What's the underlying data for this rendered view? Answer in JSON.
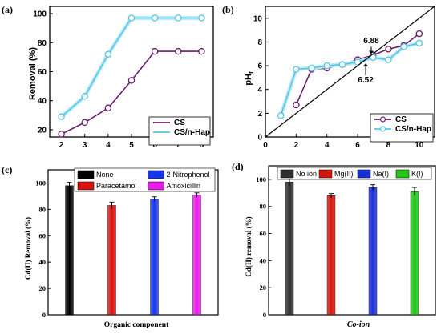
{
  "chart_data": [
    {
      "panel_label": "(a)",
      "type": "line",
      "xlabel": "",
      "ylabel": "Removal (%)",
      "xlim": [
        1.5,
        8.5
      ],
      "ylim": [
        15,
        105
      ],
      "xticks": [
        2,
        3,
        4,
        5,
        6,
        7,
        8
      ],
      "yticks": [
        20,
        40,
        60,
        80,
        100
      ],
      "legend_position": "bottom-right",
      "series": [
        {
          "name": "CS",
          "color": "#6b1f6b",
          "x": [
            2,
            3,
            4,
            5,
            6,
            7,
            8
          ],
          "y": [
            17,
            25,
            35,
            54,
            74,
            74,
            74
          ]
        },
        {
          "name": "CS/n-Hap",
          "color": "#56c6e6",
          "x": [
            2,
            3,
            4,
            5,
            6,
            7,
            8
          ],
          "y": [
            29,
            43,
            72,
            97,
            97,
            97,
            97
          ]
        }
      ]
    },
    {
      "panel_label": "(b)",
      "type": "line",
      "xlabel": "",
      "ylabel": "pH",
      "ylabel_sub": "f",
      "xlim": [
        0,
        11
      ],
      "ylim": [
        0,
        11
      ],
      "xticks": [
        0,
        2,
        4,
        6,
        8,
        10
      ],
      "yticks": [
        0,
        2,
        4,
        6,
        8,
        10
      ],
      "legend_position": "bottom-right",
      "annotations": [
        {
          "text": "6.88",
          "x": 6.88,
          "y": 7.9
        },
        {
          "text": "6.52",
          "x": 6.52,
          "y": 4.6
        }
      ],
      "series": [
        {
          "name": "CS",
          "color": "#6b1f6b",
          "x": [
            2,
            3,
            4,
            5,
            6,
            7,
            8,
            9,
            10
          ],
          "y": [
            2.7,
            5.7,
            5.8,
            6.1,
            6.5,
            6.9,
            7.4,
            7.7,
            8.7
          ]
        },
        {
          "name": "CS/n-Hap",
          "color": "#56c6e6",
          "x": [
            1,
            2,
            3,
            4,
            5,
            6,
            7,
            8,
            9,
            10
          ],
          "y": [
            1.8,
            5.7,
            5.8,
            6.0,
            6.1,
            6.3,
            6.7,
            6.5,
            7.6,
            7.9
          ]
        },
        {
          "name": "",
          "color": "#000000",
          "x": [
            0,
            11
          ],
          "y": [
            0,
            11
          ]
        }
      ]
    },
    {
      "panel_label": "(c)",
      "type": "bar",
      "xlabel": "Organic component",
      "ylabel": "Cd(II) Removal (%)",
      "ylim": [
        0,
        110
      ],
      "yticks": [
        0,
        20,
        40,
        60,
        80,
        100
      ],
      "categories": [
        "None",
        "Paracetamol",
        "2-Nitrophenol",
        "Amoxicillin"
      ],
      "order": [
        "None",
        "2-Nitrophenol",
        "Paracetamol",
        "Amoxicillin"
      ],
      "values": [
        98,
        83,
        88,
        91
      ],
      "errors": [
        2.5,
        2.5,
        1.5,
        1.5
      ],
      "colors": [
        "#000000",
        "#d9130f",
        "#1537ee",
        "#e81ce8"
      ],
      "legend_position": "top"
    },
    {
      "panel_label": "(d)",
      "type": "bar",
      "xlabel": "Co-ion",
      "ylabel": "Cd(II) removal (%)",
      "ylim": [
        0,
        110
      ],
      "yticks": [
        0,
        20,
        40,
        60,
        80,
        100
      ],
      "categories": [
        "No ion",
        "Mg(II)",
        "Na(I)",
        "K(I)"
      ],
      "values": [
        98,
        88,
        94,
        91
      ],
      "errors": [
        2.5,
        1.5,
        2.0,
        3.0
      ],
      "colors": [
        "#2f2f2f",
        "#d3170c",
        "#1a2fd6",
        "#22c518"
      ],
      "legend_position": "top"
    }
  ]
}
